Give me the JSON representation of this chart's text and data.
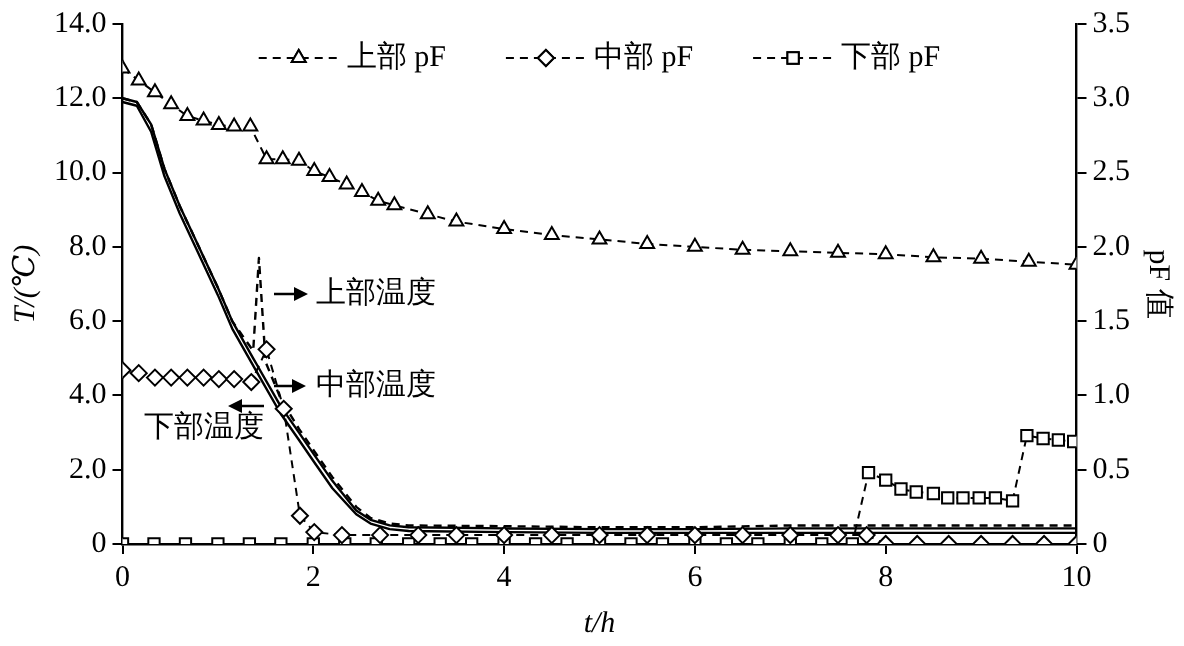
{
  "chart_data": {
    "type": "line",
    "xlabel": "t/h",
    "ylabel": "T/(℃)",
    "y2label": "pF 值",
    "xlim": [
      0,
      10
    ],
    "xticks": [
      0,
      2,
      4,
      6,
      8,
      10
    ],
    "ylim": [
      0,
      14
    ],
    "yticks": [
      0,
      {
        "value": 2,
        "label": "2.0"
      },
      {
        "value": 4,
        "label": "4.0"
      },
      {
        "value": 6,
        "label": "6.0"
      },
      {
        "value": 8,
        "label": "8.0"
      },
      {
        "value": 10,
        "label": "10.0"
      },
      {
        "value": 12,
        "label": "12.0"
      },
      {
        "value": 14,
        "label": "14.0"
      }
    ],
    "y2lim": [
      0,
      3.5
    ],
    "y2ticks": [
      0,
      0.5,
      {
        "value": 1,
        "label": "1.0"
      },
      1.5,
      {
        "value": 2,
        "label": "2.0"
      },
      2.5,
      {
        "value": 3,
        "label": "3.0"
      },
      3.5
    ],
    "grid": false,
    "legend": "top",
    "series": [
      {
        "name": "上部 pF",
        "color": "#000000",
        "axis": "y2",
        "marker": "triangle",
        "line_style": "dashed",
        "x": [
          0,
          0.17,
          0.34,
          0.51,
          0.68,
          0.85,
          1.01,
          1.17,
          1.34,
          1.51,
          1.68,
          1.85,
          2.01,
          2.17,
          2.35,
          2.51,
          2.68,
          2.85,
          3.2,
          3.5,
          4,
          4.5,
          5,
          5.5,
          6,
          6.5,
          7,
          7.5,
          8,
          8.5,
          9,
          9.5,
          10
        ],
        "values": [
          3.2,
          3.12,
          3.04,
          2.96,
          2.88,
          2.85,
          2.82,
          2.81,
          2.81,
          2.59,
          2.59,
          2.58,
          2.51,
          2.47,
          2.42,
          2.37,
          2.31,
          2.28,
          2.22,
          2.17,
          2.12,
          2.08,
          2.05,
          2.02,
          2.0,
          1.98,
          1.97,
          1.96,
          1.95,
          1.93,
          1.92,
          1.9,
          1.88
        ]
      },
      {
        "name": "中部 pF",
        "color": "#000000",
        "axis": "y2",
        "marker": "diamond",
        "line_style": "dashed",
        "x": [
          0,
          0.17,
          0.34,
          0.51,
          0.68,
          0.85,
          1.01,
          1.17,
          1.35,
          1.51,
          1.69,
          1.86,
          2.01,
          2.3,
          2.7,
          3.1,
          3.5,
          4,
          4.5,
          5,
          5.5,
          6,
          6.5,
          7,
          7.5,
          7.8,
          8,
          8.33,
          8.66,
          9,
          9.33,
          9.66,
          10
        ],
        "values": [
          1.17,
          1.15,
          1.12,
          1.12,
          1.12,
          1.12,
          1.11,
          1.11,
          1.09,
          1.31,
          0.91,
          0.19,
          0.08,
          0.06,
          0.06,
          0.06,
          0.06,
          0.06,
          0.06,
          0.06,
          0.06,
          0.06,
          0.06,
          0.06,
          0.06,
          0.06,
          0,
          0,
          0,
          0,
          0,
          0,
          0
        ]
      },
      {
        "name": "下部 pF",
        "color": "#000000",
        "axis": "y2",
        "marker": "square",
        "line_style": "dashed",
        "x": [
          0,
          0.33,
          0.66,
          1,
          1.33,
          1.66,
          2,
          2.33,
          2.66,
          3,
          3.33,
          3.66,
          4,
          4.33,
          4.66,
          5,
          5.33,
          5.66,
          6,
          6.33,
          6.66,
          7,
          7.33,
          7.65,
          7.82,
          8,
          8.16,
          8.32,
          8.5,
          8.65,
          8.81,
          8.98,
          9.15,
          9.33,
          9.48,
          9.65,
          9.81,
          9.97
        ],
        "values": [
          0,
          0,
          0,
          0,
          0,
          0,
          0,
          0,
          0,
          0,
          0,
          0,
          0,
          0,
          0,
          0,
          0,
          0,
          0,
          0,
          0,
          0,
          0,
          0,
          0.48,
          0.43,
          0.37,
          0.35,
          0.34,
          0.31,
          0.31,
          0.31,
          0.31,
          0.29,
          0.73,
          0.71,
          0.7,
          0.69
        ]
      },
      {
        "color": "#000000",
        "marker": "none",
        "line_style": "dashed",
        "x": [
          0,
          0.15,
          0.3,
          0.44,
          0.6,
          0.8,
          1,
          1.15,
          1.37,
          1.43,
          1.5,
          1.66,
          1.85,
          2.01,
          2.2,
          2.45,
          2.6,
          2.8,
          3,
          4,
          5,
          6,
          7,
          8,
          9,
          10
        ],
        "values": [
          12.0,
          11.9,
          11.3,
          10.1,
          9.1,
          8.0,
          6.9,
          6.0,
          5.2,
          7.7,
          4.9,
          3.9,
          3.1,
          2.5,
          1.8,
          1.0,
          0.7,
          0.55,
          0.5,
          0.48,
          0.45,
          0.45,
          0.5,
          0.5,
          0.5,
          0.5
        ]
      },
      {
        "color": "#000000",
        "marker": "none",
        "line_style": "solid",
        "x": [
          0,
          0.15,
          0.3,
          0.44,
          0.6,
          0.8,
          1,
          1.15,
          1.37,
          1.66,
          1.85,
          2.01,
          2.2,
          2.45,
          2.6,
          2.8,
          3,
          4,
          5,
          6,
          7,
          8,
          9,
          10
        ],
        "values": [
          12.0,
          11.9,
          11.3,
          10.1,
          9.1,
          8.0,
          6.9,
          6.0,
          5.0,
          3.7,
          3.0,
          2.4,
          1.7,
          0.9,
          0.65,
          0.5,
          0.45,
          0.42,
          0.4,
          0.4,
          0.42,
          0.42,
          0.42,
          0.42
        ]
      },
      {
        "color": "#000000",
        "marker": "none",
        "line_style": "solid",
        "x": [
          0,
          0.15,
          0.3,
          0.44,
          0.6,
          0.8,
          1,
          1.15,
          1.37,
          1.66,
          1.85,
          2.01,
          2.2,
          2.45,
          2.6,
          2.8,
          3,
          4,
          5,
          6,
          7,
          8,
          9,
          10
        ],
        "values": [
          11.9,
          11.8,
          11.1,
          9.9,
          8.9,
          7.8,
          6.7,
          5.8,
          4.8,
          3.5,
          2.8,
          2.2,
          1.5,
          0.8,
          0.55,
          0.4,
          0.35,
          0.32,
          0.3,
          0.3,
          0.3,
          0.3,
          0.3,
          0.3
        ]
      }
    ],
    "annotations": [
      "上部温度",
      "中部温度",
      "下部温度"
    ]
  }
}
